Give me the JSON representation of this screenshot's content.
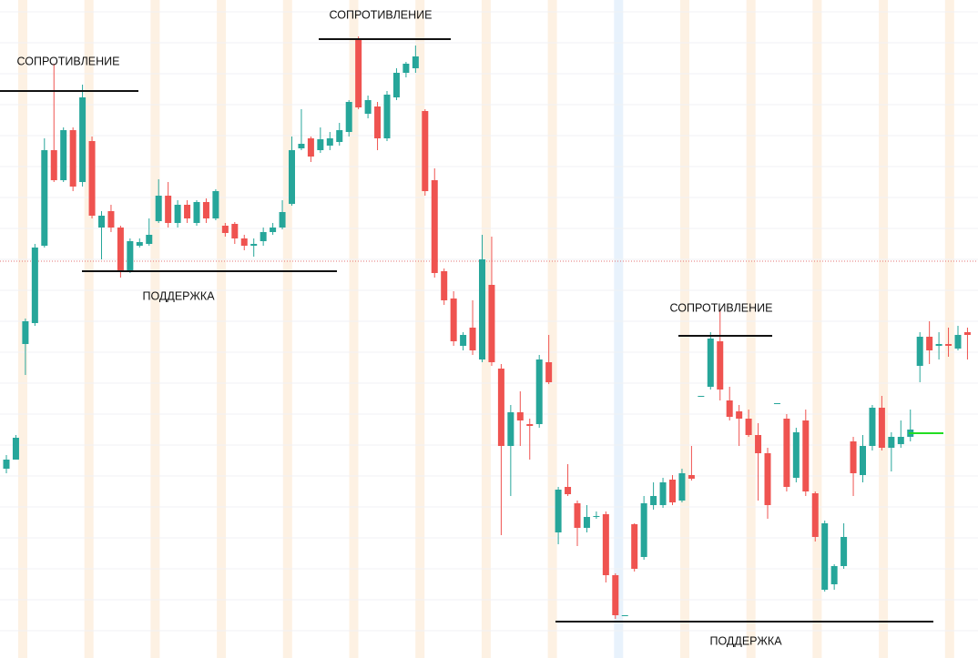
{
  "chart_data": {
    "type": "candlestick",
    "ylim": [
      0,
      723
    ],
    "categories": [
      null,
      null,
      null,
      null,
      null,
      null,
      null,
      null,
      null,
      null,
      null,
      null,
      null,
      null,
      null,
      null,
      null,
      null,
      null,
      null,
      null,
      null,
      null,
      null,
      null,
      null,
      null,
      null,
      null,
      null,
      null,
      null,
      null,
      null,
      null,
      null,
      null,
      null,
      null,
      null,
      null,
      null,
      null,
      null,
      null,
      null,
      null,
      null,
      null,
      null,
      null,
      null,
      null,
      null,
      null,
      null,
      null,
      null,
      null,
      null,
      null,
      null,
      null,
      null,
      null,
      null,
      null,
      null,
      null,
      null,
      null,
      null,
      null,
      null,
      null,
      null,
      null,
      null,
      null,
      null,
      null,
      null,
      null,
      null,
      null,
      null,
      null,
      null,
      null,
      null,
      null,
      null,
      null,
      null,
      null,
      null,
      null,
      null,
      null,
      null,
      null,
      null
    ],
    "up_color": "#26a69a",
    "down_color": "#ef5350",
    "open": [
      208,
      218,
      345,
      368,
      453,
      558,
      525,
      580,
      523,
      568,
      473,
      491,
      473,
      425,
      453,
      455,
      480,
      508,
      478,
      498,
      478,
      501,
      483,
      475,
      477,
      461,
      453,
      458,
      468,
      473,
      499,
      560,
      571,
      558,
      563,
      567,
      578,
      680,
      598,
      606,
      571,
      616,
      643,
      648,
      601,
      525,
      425,
      395,
      343,
      363,
      328,
      410,
      318,
      233,
      270,
      257,
      257,
      325,
      138,
      188,
      170,
      143,
      156,
      158,
      91,
      47,
      147,
      111,
      168,
      168,
      196,
      173,
      201,
      288,
      298,
      348,
      283,
      271,
      263,
      245,
      225,
      280,
      263,
      198,
      261,
      181,
      75,
      81,
      101,
      238,
      201,
      233,
      275,
      231,
      235,
      243,
      321,
      353,
      343,
      345,
      340,
      358
    ],
    "high": [
      223,
      245,
      373,
      455,
      571,
      653,
      583,
      583,
      630,
      573,
      491,
      498,
      475,
      461,
      461,
      483,
      526,
      523,
      503,
      503,
      503,
      505,
      515,
      478,
      479,
      465,
      461,
      473,
      478,
      503,
      573,
      603,
      573,
      583,
      578,
      588,
      613,
      683,
      618,
      611,
      623,
      648,
      655,
      673,
      603,
      538,
      428,
      403,
      358,
      393,
      465,
      463,
      323,
      278,
      293,
      263,
      333,
      355,
      188,
      213,
      173,
      168,
      161,
      161,
      93,
      47,
      148,
      178,
      193,
      198,
      201,
      208,
      233,
      288,
      358,
      383,
      298,
      278,
      273,
      258,
      231,
      280,
      268,
      253,
      273,
      183,
      151,
      103,
      148,
      243,
      245,
      278,
      288,
      248,
      261,
      273,
      358,
      370,
      358,
      363,
      365,
      363
    ],
    "low": [
      203,
      218,
      311,
      365,
      451,
      523,
      523,
      513,
      518,
      483,
      438,
      468,
      418,
      423,
      451,
      453,
      478,
      473,
      473,
      478,
      475,
      478,
      481,
      463,
      455,
      448,
      441,
      453,
      465,
      471,
      497,
      558,
      545,
      555,
      558,
      563,
      573,
      603,
      593,
      558,
      568,
      613,
      638,
      643,
      508,
      418,
      388,
      343,
      338,
      333,
      325,
      321,
      135,
      178,
      233,
      218,
      253,
      301,
      125,
      178,
      123,
      138,
      153,
      83,
      43,
      47,
      95,
      108,
      163,
      165,
      168,
      171,
      195,
      288,
      295,
      283,
      261,
      233,
      243,
      173,
      153,
      280,
      183,
      193,
      178,
      128,
      73,
      75,
      98,
      178,
      193,
      228,
      228,
      205,
      231,
      238,
      303,
      323,
      328,
      331,
      338,
      328
    ],
    "close": [
      218,
      242,
      370,
      451,
      558,
      525,
      580,
      518,
      616,
      486,
      486,
      473,
      425,
      458,
      457,
      465,
      508,
      478,
      498,
      483,
      501,
      483,
      513,
      467,
      461,
      453,
      455,
      468,
      473,
      490,
      558,
      565,
      551,
      570,
      571,
      580,
      611,
      605,
      613,
      571,
      619,
      643,
      653,
      661,
      513,
      423,
      393,
      348,
      355,
      338,
      438,
      325,
      233,
      270,
      261,
      255,
      328,
      303,
      185,
      180,
      143,
      155,
      156,
      91,
      47,
      47,
      98,
      170,
      178,
      193,
      171,
      203,
      197,
      288,
      351,
      295,
      265,
      263,
      245,
      225,
      168,
      280,
      188,
      248,
      183,
      133,
      148,
      101,
      133,
      203,
      233,
      275,
      231,
      243,
      243,
      251,
      353,
      338,
      345,
      343,
      355,
      355
    ],
    "levels": [
      {
        "label": "СОПРОТИВЛЕНИЕ",
        "value": 623
      },
      {
        "label": "СОПРОТИВЛЕНИЕ",
        "value": 680
      },
      {
        "label": "ПОДДЕРЖКА",
        "value": 425
      },
      {
        "label": "СОПРОТИВЛЕНИЕ",
        "value": 354
      },
      {
        "label": "ПОДДЕРЖКА",
        "value": 40
      }
    ],
    "current_price": 436,
    "marker_level": 247
  }
}
